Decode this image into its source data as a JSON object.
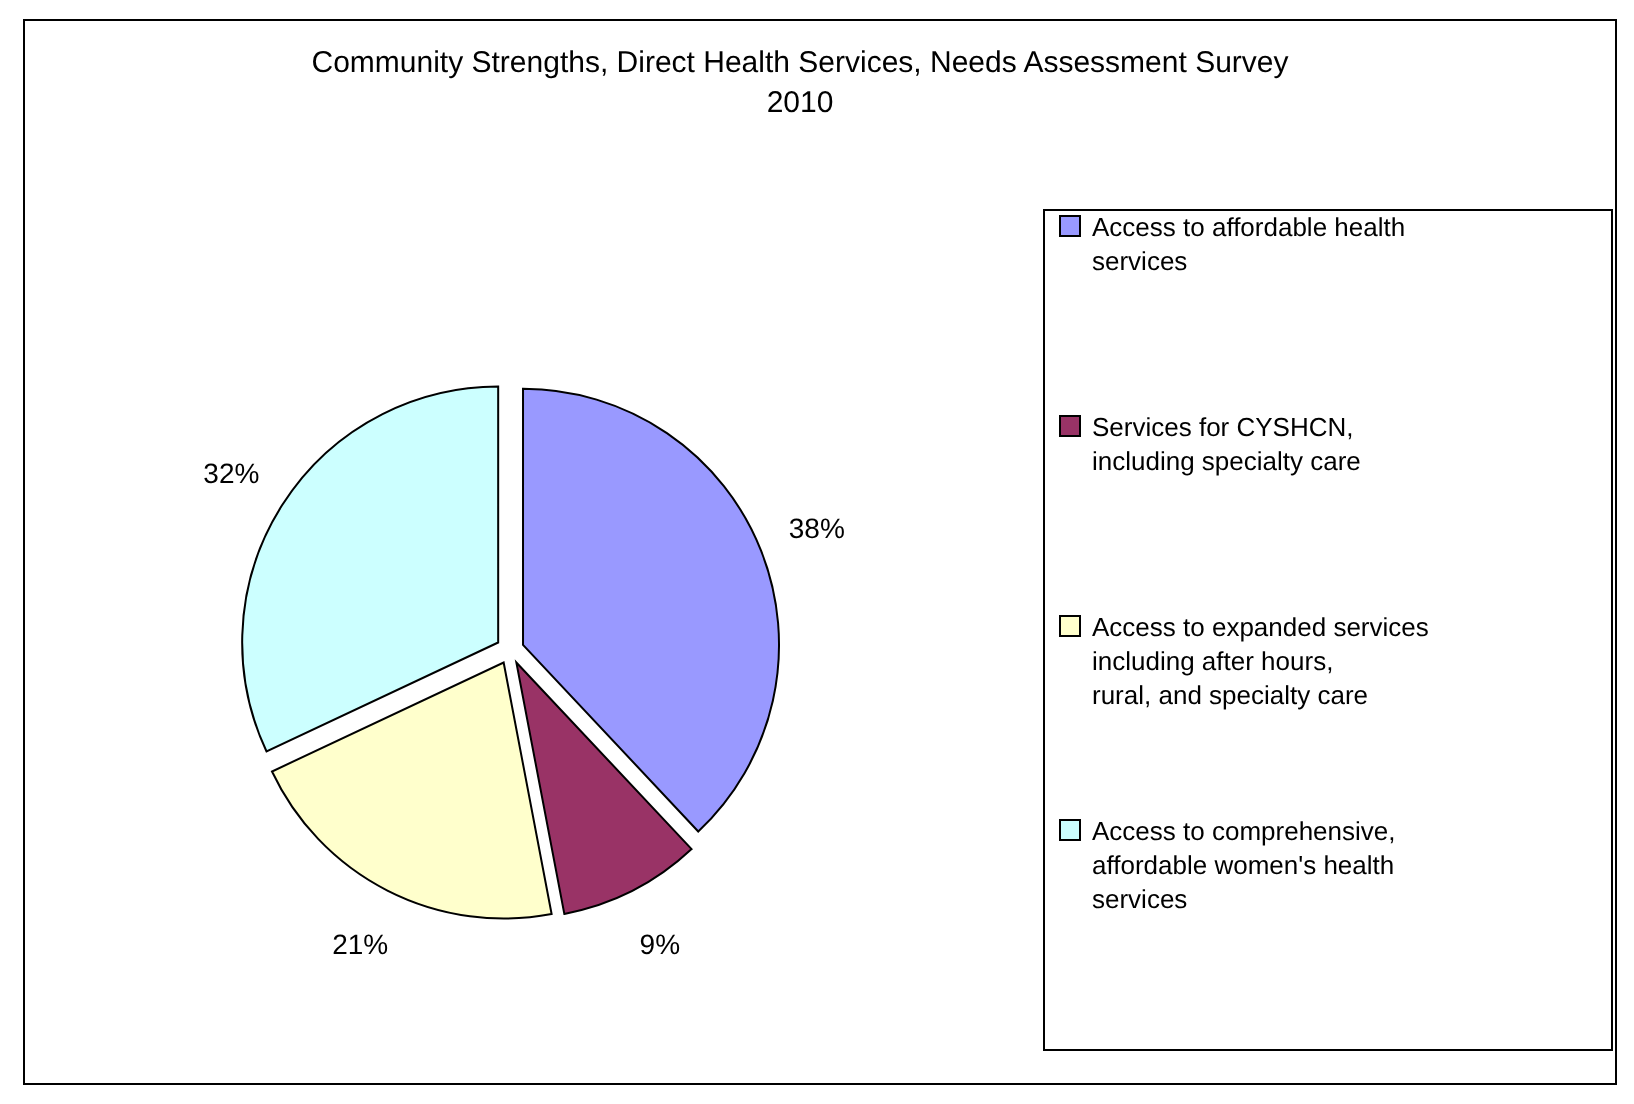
{
  "chart_data": {
    "type": "pie",
    "title": "Community Strengths, Direct Health Services, Needs Assessment Survey 2010",
    "categories": [
      "Access to affordable health services",
      "Services for CYSHCN, including specialty care",
      "Access to expanded services including after hours, rural, and specialty care",
      "Access to comprehensive, affordable women's health services"
    ],
    "values": [
      38,
      9,
      21,
      32
    ],
    "colors": [
      "#9999ff",
      "#993366",
      "#ffffcc",
      "#ccffff"
    ],
    "value_labels": [
      "38%",
      "9%",
      "21%",
      "32%"
    ],
    "legend": "right"
  }
}
